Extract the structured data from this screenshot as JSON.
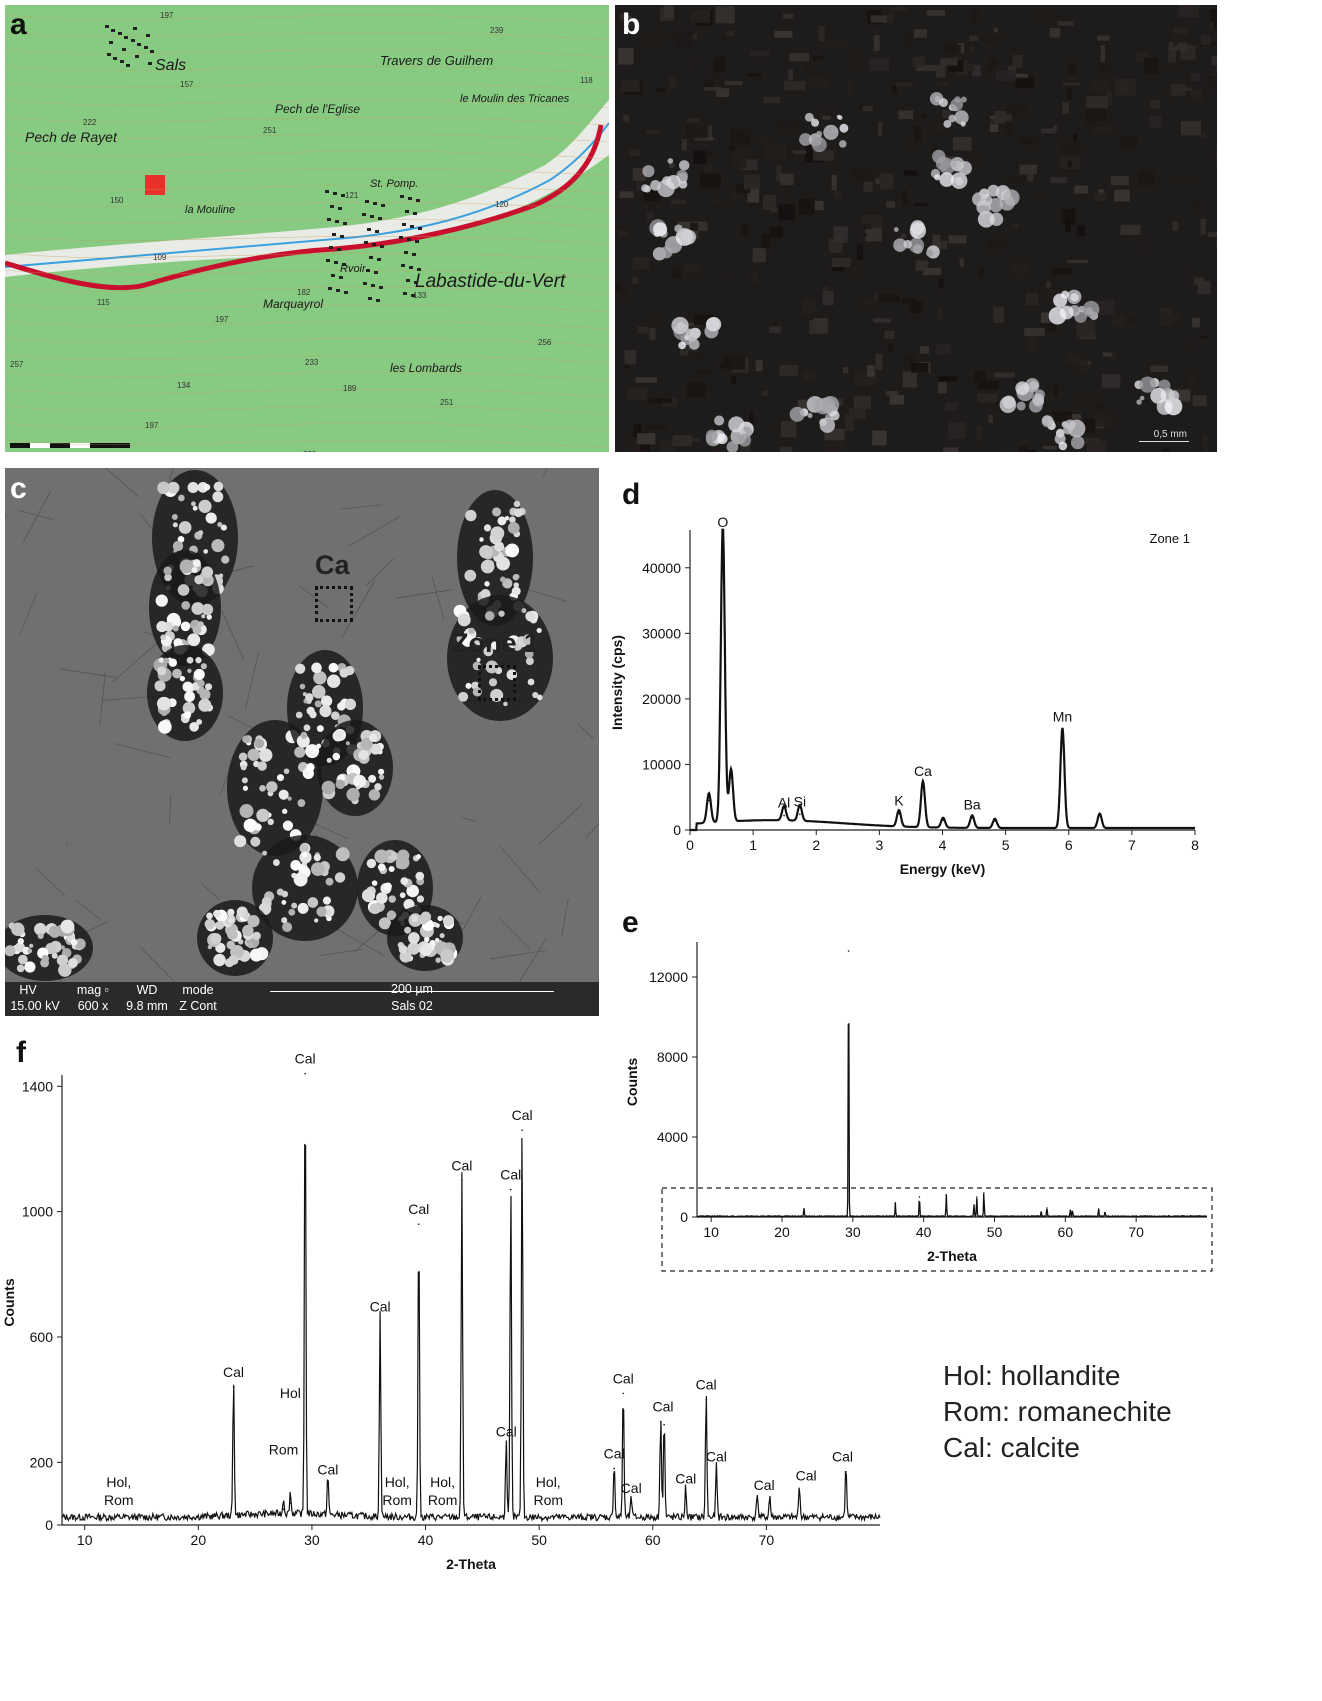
{
  "panels": {
    "a": "a",
    "b": "b",
    "c": "c",
    "d": "d",
    "e": "e",
    "f": "f"
  },
  "map": {
    "labels": [
      "Sals",
      "Travers de Guilhem",
      "Pech de l'Eglise",
      "le Moulin des Tricanes",
      "Pech de Rayet",
      "la Mouline",
      "St. Pomp.",
      "Labastide-du-Vert",
      "Marquayrol",
      "les Lombards",
      "Rvoir"
    ],
    "elevations": [
      "197",
      "157",
      "222",
      "251",
      "239",
      "118",
      "121",
      "120",
      "150",
      "109",
      "115",
      "197",
      "182",
      "133",
      "256",
      "233",
      "189",
      "251",
      "134",
      "257",
      "197",
      "222"
    ],
    "marker_color": "#e8312a"
  },
  "micrograph": {
    "scale_label": "0,5 mm"
  },
  "sem": {
    "zone_ca": "Ca",
    "zone_1": "Zone 1",
    "info": {
      "hv_h": "HV",
      "mag_h": "mag ▫",
      "wd_h": "WD",
      "mode_h": "mode",
      "hv_v": "15.00 kV",
      "mag_v": "600 x",
      "wd_v": "9.8 mm",
      "mode_v": "Z Cont",
      "scale": "200 µm",
      "sample": "Sals 02"
    }
  },
  "legend": [
    "Hol: hollandite",
    "Rom: romanechite",
    "Cal: calcite"
  ],
  "chart_data": [
    {
      "panel": "d",
      "type": "line",
      "title": "Zone 1",
      "xlabel": "Energy (keV)",
      "ylabel": "Intensity (cps)",
      "xlim": [
        0,
        8
      ],
      "ylim": [
        0,
        45000
      ],
      "xticks": [
        0,
        1,
        2,
        3,
        4,
        5,
        6,
        7,
        8
      ],
      "yticks": [
        0,
        10000,
        20000,
        30000,
        40000
      ],
      "peaks": [
        {
          "label": "O",
          "x": 0.52,
          "y": 45000
        },
        {
          "label": "",
          "x": 0.65,
          "y": 8000
        },
        {
          "label": "",
          "x": 0.3,
          "y": 4500
        },
        {
          "label": "Al",
          "x": 1.49,
          "y": 2200
        },
        {
          "label": "Si",
          "x": 1.74,
          "y": 2400
        },
        {
          "label": "K",
          "x": 3.31,
          "y": 2500
        },
        {
          "label": "Ca",
          "x": 3.69,
          "y": 7000
        },
        {
          "label": "",
          "x": 4.01,
          "y": 1500
        },
        {
          "label": "Ba",
          "x": 4.47,
          "y": 1900
        },
        {
          "label": "",
          "x": 4.83,
          "y": 1400
        },
        {
          "label": "Mn",
          "x": 5.9,
          "y": 15300
        },
        {
          "label": "",
          "x": 6.49,
          "y": 2200
        }
      ]
    },
    {
      "panel": "e",
      "type": "line",
      "xlabel": "2-Theta",
      "ylabel": "Counts",
      "xlim": [
        8,
        80
      ],
      "ylim": [
        0,
        13500
      ],
      "xticks": [
        10,
        20,
        30,
        40,
        50,
        60,
        70
      ],
      "yticks": [
        0,
        4000,
        8000,
        12000
      ],
      "peaks": [
        {
          "x": 23.1,
          "y": 400
        },
        {
          "x": 29.4,
          "y": 13300
        },
        {
          "x": 36.0,
          "y": 700
        },
        {
          "x": 39.4,
          "y": 1000
        },
        {
          "x": 43.2,
          "y": 1100
        },
        {
          "x": 47.1,
          "y": 600
        },
        {
          "x": 47.5,
          "y": 1000
        },
        {
          "x": 48.5,
          "y": 1200
        },
        {
          "x": 56.6,
          "y": 250
        },
        {
          "x": 57.4,
          "y": 450
        },
        {
          "x": 60.7,
          "y": 330
        },
        {
          "x": 61.0,
          "y": 280
        },
        {
          "x": 64.7,
          "y": 400
        },
        {
          "x": 65.6,
          "y": 220
        }
      ]
    },
    {
      "panel": "f",
      "type": "line",
      "xlabel": "2-Theta",
      "ylabel": "Counts",
      "xlim": [
        8,
        80
      ],
      "ylim": [
        0,
        1420
      ],
      "xticks": [
        10,
        20,
        30,
        40,
        50,
        60,
        70
      ],
      "yticks": [
        0,
        200,
        600,
        1000,
        1400
      ],
      "ytick_labels": [
        "0",
        "200",
        "600",
        "1000",
        "1400"
      ],
      "peaks": [
        {
          "x": 23.1,
          "y": 440
        },
        {
          "x": 29.4,
          "y": 1440
        },
        {
          "x": 31.4,
          "y": 130
        },
        {
          "x": 36.0,
          "y": 650
        },
        {
          "x": 39.4,
          "y": 960
        },
        {
          "x": 43.2,
          "y": 1100
        },
        {
          "x": 47.1,
          "y": 250
        },
        {
          "x": 47.5,
          "y": 1070
        },
        {
          "x": 48.5,
          "y": 1260
        },
        {
          "x": 56.6,
          "y": 180
        },
        {
          "x": 57.4,
          "y": 420
        },
        {
          "x": 58.1,
          "y": 70
        },
        {
          "x": 60.7,
          "y": 330
        },
        {
          "x": 61.0,
          "y": 320
        },
        {
          "x": 62.9,
          "y": 100
        },
        {
          "x": 64.7,
          "y": 400
        },
        {
          "x": 65.6,
          "y": 170
        },
        {
          "x": 69.2,
          "y": 80
        },
        {
          "x": 70.3,
          "y": 70
        },
        {
          "x": 72.9,
          "y": 110
        },
        {
          "x": 77.0,
          "y": 170
        },
        {
          "x": 27.5,
          "y": 50
        },
        {
          "x": 28.1,
          "y": 70
        }
      ],
      "annotations": [
        {
          "text": "Cal",
          "x": 23.1,
          "y": 440
        },
        {
          "text": "Cal",
          "x": 29.4,
          "y": 1440
        },
        {
          "text": "Cal",
          "x": 31.4,
          "y": 130
        },
        {
          "text": "Cal",
          "x": 36.0,
          "y": 650
        },
        {
          "text": "Cal",
          "x": 39.4,
          "y": 960
        },
        {
          "text": "Cal",
          "x": 43.2,
          "y": 1100
        },
        {
          "text": "Cal",
          "x": 47.1,
          "y": 250
        },
        {
          "text": "Cal",
          "x": 47.5,
          "y": 1070
        },
        {
          "text": "Cal",
          "x": 48.5,
          "y": 1260
        },
        {
          "text": "Cal",
          "x": 56.6,
          "y": 180
        },
        {
          "text": "Cal",
          "x": 57.4,
          "y": 420
        },
        {
          "text": "Cal",
          "x": 58.1,
          "y": 70
        },
        {
          "text": "Cal",
          "x": 60.9,
          "y": 330
        },
        {
          "text": "Cal",
          "x": 62.9,
          "y": 100
        },
        {
          "text": "Cal",
          "x": 64.7,
          "y": 400
        },
        {
          "text": "Cal",
          "x": 65.6,
          "y": 170
        },
        {
          "text": "Cal",
          "x": 69.8,
          "y": 80
        },
        {
          "text": "Cal",
          "x": 73.5,
          "y": 110
        },
        {
          "text": "Cal",
          "x": 76.7,
          "y": 170
        },
        {
          "text": "Hol",
          "x": 28.1,
          "y": 70
        },
        {
          "text": "Rom",
          "x": 27.5,
          "y": 50
        },
        {
          "text": "Hol,",
          "x": 13.0,
          "y": 0
        },
        {
          "text": "Rom",
          "x": 13.0,
          "y": 0
        },
        {
          "text": "Hol,",
          "x": 37.5,
          "y": 0
        },
        {
          "text": "Rom",
          "x": 37.5,
          "y": 0
        },
        {
          "text": "Hol,",
          "x": 41.5,
          "y": 0
        },
        {
          "text": "Rom",
          "x": 41.5,
          "y": 0
        },
        {
          "text": "Hol,",
          "x": 50.8,
          "y": 0
        },
        {
          "text": "Rom",
          "x": 50.8,
          "y": 0
        }
      ]
    }
  ]
}
